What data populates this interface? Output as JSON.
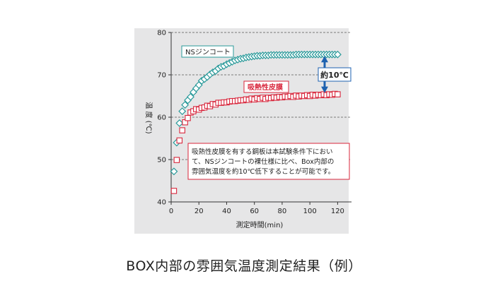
{
  "caption": "BOX内部の雰囲気温度測定結果（例）",
  "chart_data": {
    "type": "scatter",
    "xlabel": "測定時間(min)",
    "ylabel": "温 度 (℃)",
    "xlim": [
      0,
      130
    ],
    "ylim": [
      40,
      80
    ],
    "xticks": [
      0,
      20,
      40,
      60,
      80,
      100,
      120
    ],
    "yticks": [
      40,
      50,
      60,
      70,
      80
    ],
    "grid": "dashed horizontal",
    "series": [
      {
        "name": "NSジンコート",
        "color": "#2a9a9a",
        "marker": "diamond",
        "x": [
          2,
          4,
          6,
          8,
          10,
          12,
          14,
          16,
          18,
          20,
          22,
          24,
          26,
          28,
          30,
          32,
          34,
          36,
          38,
          40,
          42,
          44,
          46,
          48,
          50,
          52,
          54,
          56,
          58,
          60,
          62,
          64,
          66,
          68,
          70,
          72,
          74,
          76,
          78,
          80,
          82,
          84,
          86,
          88,
          90,
          92,
          94,
          96,
          98,
          100,
          102,
          104,
          106,
          108,
          110,
          112,
          114,
          116,
          118,
          120
        ],
        "y": [
          47.2,
          54.0,
          58.6,
          61.4,
          62.9,
          64.0,
          64.8,
          65.9,
          66.8,
          67.6,
          68.6,
          69.0,
          69.5,
          70.1,
          70.6,
          70.9,
          71.5,
          71.9,
          72.1,
          72.5,
          72.8,
          73.1,
          73.4,
          73.6,
          73.8,
          73.9,
          74.1,
          74.2,
          74.3,
          74.4,
          74.5,
          74.5,
          74.6,
          74.6,
          74.6,
          74.7,
          74.7,
          74.7,
          74.7,
          74.7,
          74.7,
          74.7,
          74.7,
          74.7,
          74.8,
          74.8,
          74.8,
          74.8,
          74.8,
          74.8,
          74.8,
          74.8,
          74.8,
          74.8,
          74.8,
          74.8,
          74.8,
          74.8,
          74.8,
          74.8
        ]
      },
      {
        "name": "吸熱性皮膜",
        "color": "#d8253b",
        "marker": "square",
        "x": [
          2,
          4,
          6,
          8,
          10,
          12,
          14,
          16,
          18,
          20,
          22,
          24,
          26,
          28,
          30,
          32,
          34,
          36,
          38,
          40,
          42,
          44,
          46,
          48,
          50,
          52,
          54,
          56,
          58,
          60,
          62,
          64,
          66,
          68,
          70,
          72,
          74,
          76,
          78,
          80,
          82,
          84,
          86,
          88,
          90,
          92,
          94,
          96,
          98,
          100,
          102,
          104,
          106,
          108,
          110,
          112,
          114,
          116,
          118,
          120
        ],
        "y": [
          42.6,
          49.9,
          54.5,
          56.9,
          58.8,
          59.8,
          61.1,
          61.4,
          61.9,
          61.8,
          62.2,
          62.3,
          62.7,
          62.6,
          63.1,
          63.0,
          63.4,
          63.4,
          63.5,
          63.5,
          63.7,
          63.8,
          63.8,
          63.9,
          64.0,
          64.0,
          64.2,
          64.1,
          64.4,
          64.2,
          64.5,
          64.3,
          64.6,
          64.3,
          64.6,
          64.5,
          64.7,
          64.6,
          64.8,
          64.7,
          64.9,
          64.8,
          65.0,
          64.8,
          65.1,
          64.9,
          65.1,
          65.0,
          65.2,
          65.0,
          65.3,
          65.1,
          65.3,
          65.2,
          65.4,
          65.2,
          65.4,
          65.3,
          65.5,
          65.4
        ]
      }
    ],
    "annotations": {
      "difference_label": "約10℃",
      "arrow_from": 74.8,
      "arrow_to": 65.4,
      "note_lines": [
        "吸熱性皮膜を有する鋼板は本試験条件下におい",
        "て、NSジンコートの裸仕様に比べ、Box内部の",
        "雰囲気温度を約10℃低下することが可能です。"
      ]
    }
  }
}
